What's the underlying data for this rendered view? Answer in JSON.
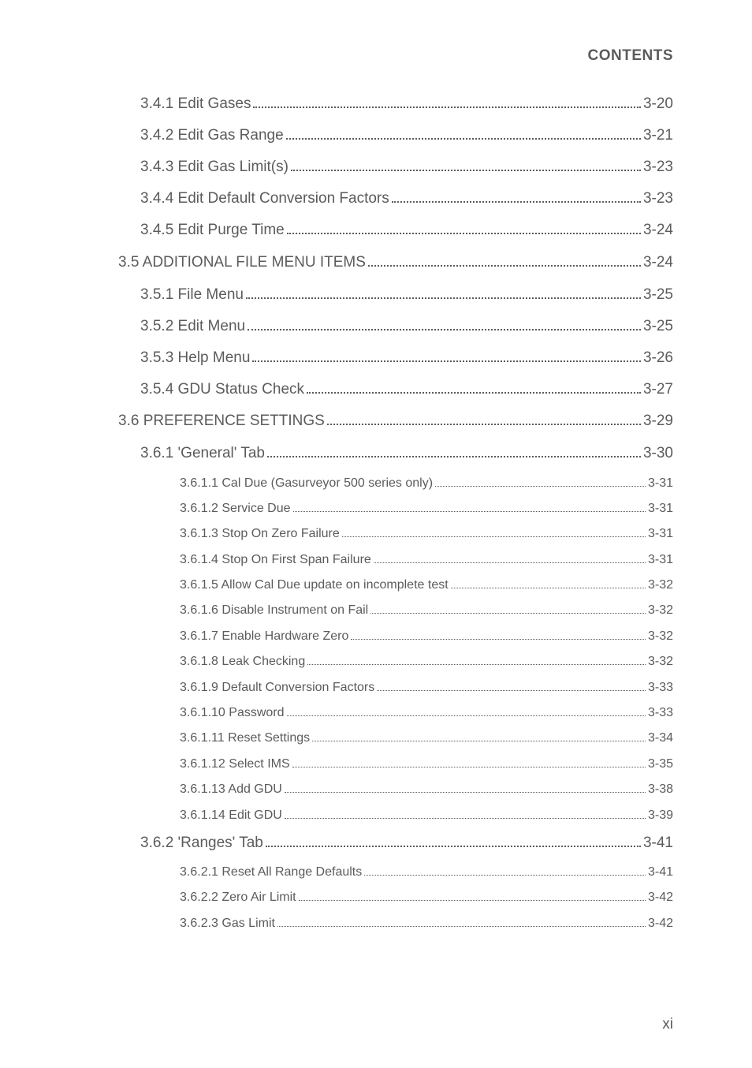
{
  "header": {
    "title": "CONTENTS"
  },
  "footer": {
    "page_number": "xi"
  },
  "toc_entries": [
    {
      "level": 3,
      "label": "3.4.1  Edit Gases",
      "page": "3-20"
    },
    {
      "level": 3,
      "label": "3.4.2  Edit Gas Range",
      "page": "3-21"
    },
    {
      "level": 3,
      "label": "3.4.3  Edit Gas Limit(s)",
      "page": "3-23"
    },
    {
      "level": 3,
      "label": "3.4.4  Edit Default Conversion Factors",
      "page": "3-23"
    },
    {
      "level": 3,
      "label": "3.4.5  Edit Purge Time",
      "page": "3-24"
    },
    {
      "level": 2,
      "label": "3.5  ADDITIONAL FILE MENU ITEMS",
      "page": "3-24"
    },
    {
      "level": 3,
      "label": "3.5.1  File Menu",
      "page": "3-25"
    },
    {
      "level": 3,
      "label": "3.5.2  Edit Menu",
      "page": "3-25"
    },
    {
      "level": 3,
      "label": "3.5.3  Help Menu",
      "page": "3-26"
    },
    {
      "level": 3,
      "label": "3.5.4  GDU Status Check",
      "page": "3-27"
    },
    {
      "level": 2,
      "label": "3.6  PREFERENCE SETTINGS",
      "page": "3-29"
    },
    {
      "level": 3,
      "label": "3.6.1  'General' Tab",
      "page": "3-30"
    },
    {
      "level": 4,
      "label": "3.6.1.1  Cal Due (Gasurveyor 500 series only)",
      "page": "3-31"
    },
    {
      "level": 4,
      "label": "3.6.1.2  Service Due",
      "page": "3-31"
    },
    {
      "level": 4,
      "label": "3.6.1.3  Stop On Zero Failure",
      "page": "3-31"
    },
    {
      "level": 4,
      "label": "3.6.1.4  Stop On First Span Failure",
      "page": "3-31"
    },
    {
      "level": 4,
      "label": "3.6.1.5  Allow Cal Due update on incomplete test",
      "page": "3-32"
    },
    {
      "level": 4,
      "label": "3.6.1.6  Disable Instrument on Fail",
      "page": "3-32"
    },
    {
      "level": 4,
      "label": "3.6.1.7  Enable Hardware Zero",
      "page": "3-32"
    },
    {
      "level": 4,
      "label": "3.6.1.8  Leak Checking",
      "page": "3-32"
    },
    {
      "level": 4,
      "label": "3.6.1.9  Default Conversion Factors",
      "page": "3-33"
    },
    {
      "level": 4,
      "label": "3.6.1.10  Password",
      "page": "3-33"
    },
    {
      "level": 4,
      "label": "3.6.1.11  Reset Settings",
      "page": "3-34"
    },
    {
      "level": 4,
      "label": "3.6.1.12  Select IMS",
      "page": "3-35"
    },
    {
      "level": 4,
      "label": "3.6.1.13  Add GDU",
      "page": "3-38"
    },
    {
      "level": 4,
      "label": "3.6.1.14  Edit GDU",
      "page": "3-39"
    },
    {
      "level": 3,
      "label": "3.6.2  'Ranges' Tab",
      "page": "3-41"
    },
    {
      "level": 4,
      "label": "3.6.2.1  Reset All Range Defaults",
      "page": "3-41"
    },
    {
      "level": 4,
      "label": "3.6.2.2  Zero Air Limit",
      "page": "3-42"
    },
    {
      "level": 4,
      "label": "3.6.2.3  Gas Limit",
      "page": "3-42"
    }
  ]
}
